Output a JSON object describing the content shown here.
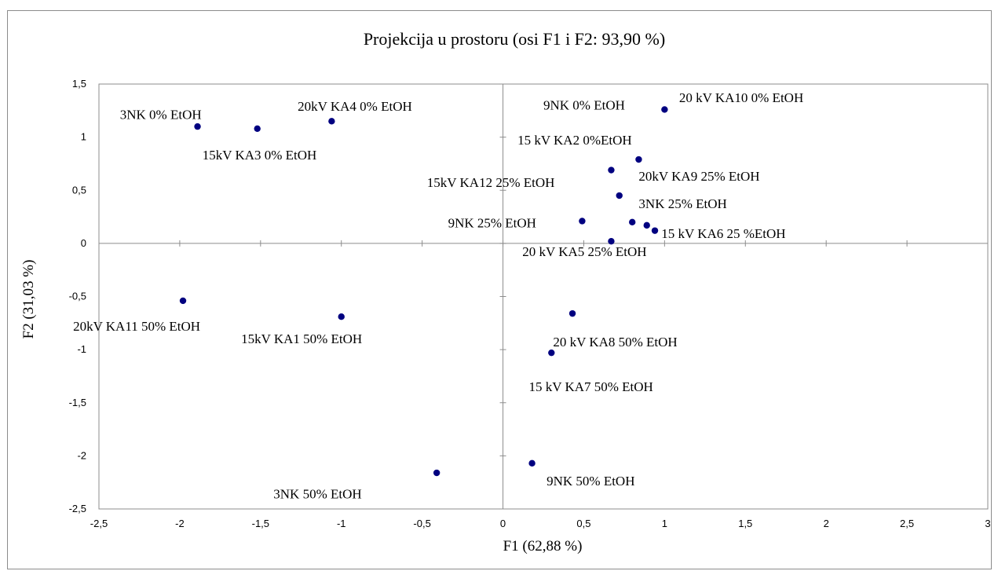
{
  "chart_data": {
    "type": "scatter",
    "title": "Projekcija u prostoru  (osi F1 i F2: 93,90 %)",
    "xlabel": "F1 (62,88 %)",
    "ylabel": "F2 (31,03 %)",
    "xlim": [
      -2.5,
      3
    ],
    "ylim": [
      -2.5,
      1.5
    ],
    "xticks": [
      "-2,5",
      "-2",
      "-1,5",
      "-1",
      "-0,5",
      "0",
      "0,5",
      "1",
      "1,5",
      "2",
      "2,5",
      "3"
    ],
    "yticks": [
      "-2,5",
      "-2",
      "-1,5",
      "-1",
      "-0,5",
      "0",
      "0,5",
      "1",
      "1,5"
    ],
    "xtick_values": [
      -2.5,
      -2,
      -1.5,
      -1,
      -0.5,
      0,
      0.5,
      1,
      1.5,
      2,
      2.5,
      3
    ],
    "ytick_values": [
      -2.5,
      -2,
      -1.5,
      -1,
      -0.5,
      0,
      0.5,
      1,
      1.5
    ],
    "grid": false,
    "marker_color": "#000080",
    "points": [
      {
        "x": -1.89,
        "y": 1.1
      },
      {
        "x": -1.52,
        "y": 1.08
      },
      {
        "x": -1.06,
        "y": 1.15
      },
      {
        "x": 1.0,
        "y": 1.26
      },
      {
        "x": 0.84,
        "y": 0.79
      },
      {
        "x": 0.67,
        "y": 0.69
      },
      {
        "x": 0.72,
        "y": 0.45
      },
      {
        "x": 0.49,
        "y": 0.21
      },
      {
        "x": 0.8,
        "y": 0.2
      },
      {
        "x": 0.89,
        "y": 0.17
      },
      {
        "x": 0.94,
        "y": 0.12
      },
      {
        "x": 0.67,
        "y": 0.02
      },
      {
        "x": -1.98,
        "y": -0.54
      },
      {
        "x": -1.0,
        "y": -0.69
      },
      {
        "x": 0.43,
        "y": -0.66
      },
      {
        "x": 0.3,
        "y": -1.03
      },
      {
        "x": -0.41,
        "y": -2.16
      },
      {
        "x": 0.18,
        "y": -2.07
      }
    ],
    "annotations": [
      {
        "text": "3NK 0% EtOH",
        "x": -2.37,
        "y": 1.17
      },
      {
        "text": "20kV KA4 0% EtOH",
        "x": -1.27,
        "y": 1.25
      },
      {
        "text": "15kV KA3 0% EtOH",
        "x": -1.86,
        "y": 0.79
      },
      {
        "text": "9NK 0% EtOH",
        "x": 0.25,
        "y": 1.26
      },
      {
        "text": "20 kV KA10 0% EtOH",
        "x": 1.09,
        "y": 1.33
      },
      {
        "text": "15 kV KA2 0%EtOH",
        "x": 0.09,
        "y": 0.93
      },
      {
        "text": "20kV KA9 25% EtOH",
        "x": 0.84,
        "y": 0.59
      },
      {
        "text": "15kV KA12 25% EtOH",
        "x": -0.47,
        "y": 0.53
      },
      {
        "text": "3NK 25% EtOH",
        "x": 0.84,
        "y": 0.33
      },
      {
        "text": "9NK 25% EtOH",
        "x": -0.34,
        "y": 0.15
      },
      {
        "text": "15 kV KA6 25 %EtOH",
        "x": 0.98,
        "y": 0.05
      },
      {
        "text": "20 kV KA5 25% EtOH",
        "x": 0.12,
        "y": -0.12
      },
      {
        "text": "20kV KA11 50% EtOH",
        "x": -2.66,
        "y": -0.82
      },
      {
        "text": "15kV KA1 50% EtOH",
        "x": -1.62,
        "y": -0.94
      },
      {
        "text": "20 kV KA8 50% EtOH",
        "x": 0.31,
        "y": -0.97
      },
      {
        "text": "15 kV KA7 50% EtOH",
        "x": 0.16,
        "y": -1.39
      },
      {
        "text": "3NK 50% EtOH",
        "x": -1.42,
        "y": -2.4
      },
      {
        "text": "9NK 50% EtOH",
        "x": 0.27,
        "y": -2.28
      }
    ]
  }
}
